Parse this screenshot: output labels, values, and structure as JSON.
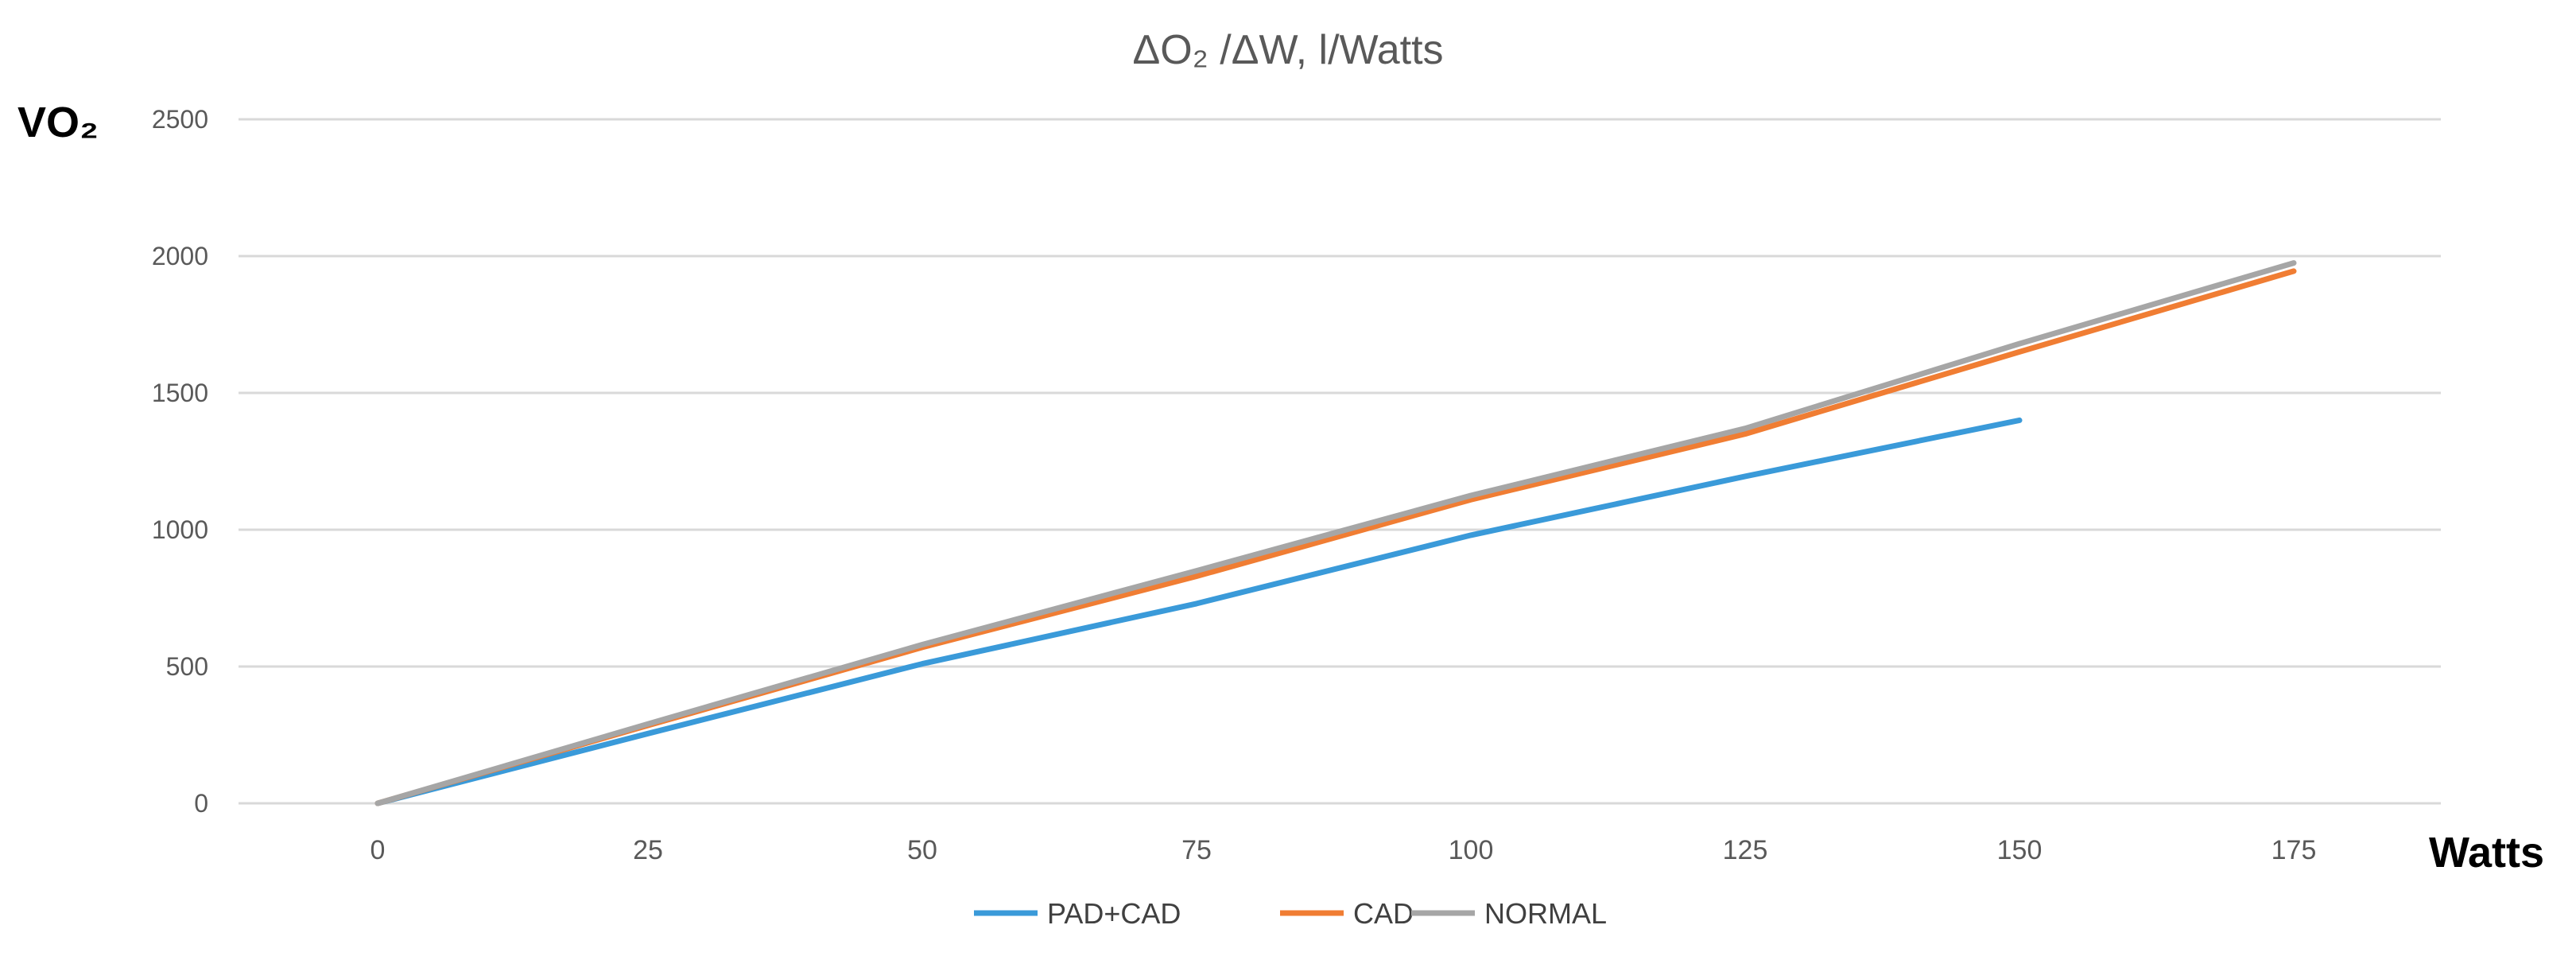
{
  "chart_data": {
    "type": "line",
    "title": "ΔO₂ /ΔW, l/Watts",
    "ylabel": "VO₂",
    "xlabel": "Watts",
    "x": [
      0,
      25,
      50,
      75,
      100,
      125,
      150,
      175
    ],
    "ylim": [
      0,
      2500
    ],
    "yticks": [
      0,
      500,
      1000,
      1500,
      2000,
      2500
    ],
    "grid": true,
    "legend_position": "bottom",
    "series": [
      {
        "name": "PAD+CAD",
        "color": "#3a9ad9",
        "values": [
          0,
          255,
          510,
          730,
          980,
          1195,
          1400,
          null
        ]
      },
      {
        "name": "CAD",
        "color": "#f07d33",
        "values": [
          0,
          285,
          570,
          830,
          1110,
          1350,
          1650,
          1945
        ]
      },
      {
        "name": "NORMAL",
        "color": "#a6a6a6",
        "values": [
          0,
          290,
          580,
          850,
          1125,
          1370,
          1680,
          1975
        ]
      }
    ]
  }
}
